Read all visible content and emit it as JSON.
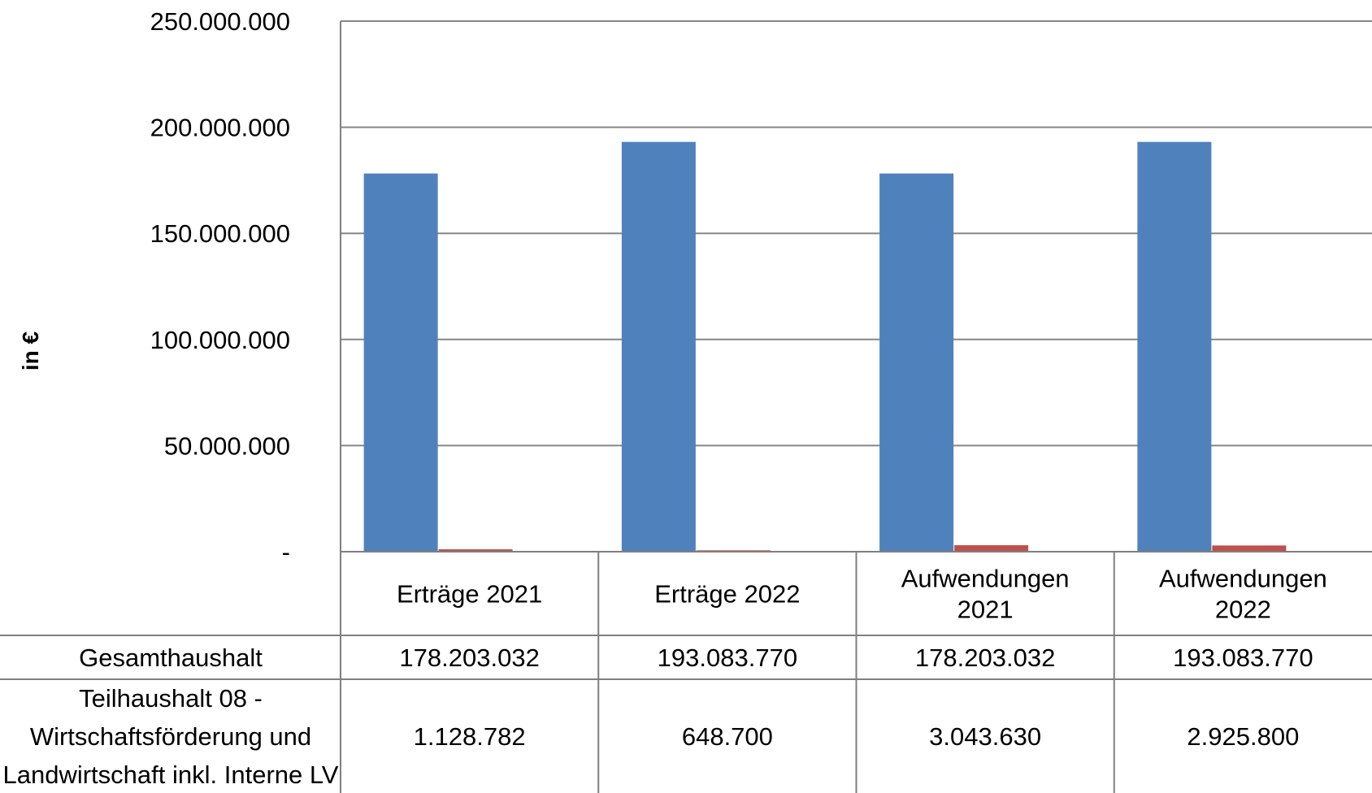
{
  "chart_data": {
    "type": "bar",
    "ylabel": "in €",
    "ylim": [
      0,
      250000000
    ],
    "yticks": [
      "-",
      "50.000.000",
      "100.000.000",
      "150.000.000",
      "200.000.000",
      "250.000.000"
    ],
    "grid": true,
    "categories": [
      [
        "Erträge 2021"
      ],
      [
        "Erträge 2022"
      ],
      [
        "Aufwendungen",
        "2021"
      ],
      [
        "Aufwendungen",
        "2022"
      ]
    ],
    "series": [
      {
        "name": [
          "Gesamthaushalt"
        ],
        "color": "#4f81bd",
        "values": [
          178203032,
          193083770,
          178203032,
          193083770
        ],
        "labels": [
          "178.203.032",
          "193.083.770",
          "178.203.032",
          "193.083.770"
        ]
      },
      {
        "name": [
          "Teilhaushalt 08 -",
          "Wirtschaftsförderung und",
          "Landwirtschaft inkl. Interne LV"
        ],
        "color": "#c0504d",
        "values": [
          1128782,
          648700,
          3043630,
          2925800
        ],
        "labels": [
          "1.128.782",
          "648.700",
          "3.043.630",
          "2.925.800"
        ]
      }
    ]
  }
}
